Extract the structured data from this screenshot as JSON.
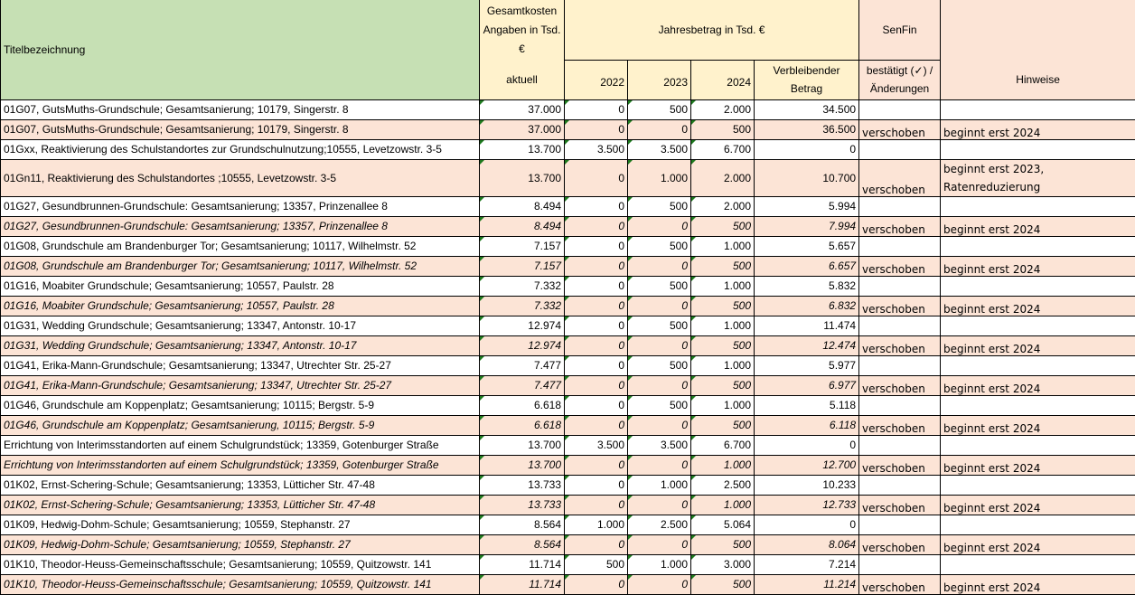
{
  "header": {
    "title_label": "Titelbezeichnung",
    "gesamtkosten_label": "Gesamtkosten Angaben in Tsd. €",
    "aktuell_label": "aktuell",
    "jahresbetrag_label": "Jahresbetrag in Tsd. €",
    "year_2022": "2022",
    "year_2023": "2023",
    "year_2024": "2024",
    "verbleibend_label": "Verbleibender Betrag",
    "senfin_label": "SenFin",
    "bestaetigt_label": "bestätigt (✓) / Änderungen",
    "hinweise_label": "Hinweise"
  },
  "rows": [
    {
      "title": "01G07, GutsMuths-Grundschule; Gesamtsanierung; 10179, Singerstr. 8",
      "aktuell": "37.000",
      "y2022": "0",
      "y2023": "500",
      "y2024": "2.000",
      "rest": "34.500",
      "senfin": "",
      "hinweis": ""
    },
    {
      "title": "01G07, GutsMuths-Grundschule; Gesamtsanierung; 10179, Singerstr. 8",
      "aktuell": "37.000",
      "y2022": "0",
      "y2023": "0",
      "y2024": "500",
      "rest": "36.500",
      "senfin": "verschoben",
      "hinweis": "beginnt erst 2024"
    },
    {
      "title": "01Gxx, Reaktivierung des Schulstandortes zur Grundschulnutzung;10555, Levetzowstr. 3-5",
      "aktuell": "13.700",
      "y2022": "3.500",
      "y2023": "3.500",
      "y2024": "6.700",
      "rest": "0",
      "senfin": "",
      "hinweis": ""
    },
    {
      "title": "01Gn11, Reaktivierung des Schulstandortes ;10555, Levetzowstr. 3-5",
      "aktuell": "13.700",
      "y2022": "0",
      "y2023": "1.000",
      "y2024": "2.000",
      "rest": "10.700",
      "senfin": "verschoben",
      "hinweis": "beginnt erst 2023, Ratenreduzierung"
    },
    {
      "title": "01G27, Gesundbrunnen-Grundschule: Gesamtsanierung; 13357, Prinzenallee 8",
      "aktuell": "8.494",
      "y2022": "0",
      "y2023": "500",
      "y2024": "2.000",
      "rest": "5.994",
      "senfin": "",
      "hinweis": ""
    },
    {
      "title": "01G27, Gesundbrunnen-Grundschule: Gesamtsanierung; 13357, Prinzenallee 8",
      "aktuell": "8.494",
      "y2022": "0",
      "y2023": "0",
      "y2024": "500",
      "rest": "7.994",
      "senfin": "verschoben",
      "hinweis": "beginnt erst 2024"
    },
    {
      "title": "01G08, Grundschule am Brandenburger Tor; Gesamtsanierung; 10117, Wilhelmstr. 52",
      "aktuell": "7.157",
      "y2022": "0",
      "y2023": "500",
      "y2024": "1.000",
      "rest": "5.657",
      "senfin": "",
      "hinweis": ""
    },
    {
      "title": "01G08, Grundschule am Brandenburger Tor; Gesamtsanierung; 10117, Wilhelmstr. 52",
      "aktuell": "7.157",
      "y2022": "0",
      "y2023": "0",
      "y2024": "500",
      "rest": "6.657",
      "senfin": "verschoben",
      "hinweis": "beginnt erst 2024"
    },
    {
      "title": "01G16, Moabiter Grundschule; Gesamtsanierung; 10557, Paulstr. 28",
      "aktuell": "7.332",
      "y2022": "0",
      "y2023": "500",
      "y2024": "1.000",
      "rest": "5.832",
      "senfin": "",
      "hinweis": ""
    },
    {
      "title": "01G16, Moabiter Grundschule; Gesamtsanierung; 10557, Paulstr. 28",
      "aktuell": "7.332",
      "y2022": "0",
      "y2023": "0",
      "y2024": "500",
      "rest": "6.832",
      "senfin": "verschoben",
      "hinweis": "beginnt erst 2024"
    },
    {
      "title": "01G31, Wedding Grundschule; Gesamtsanierung; 13347, Antonstr. 10-17",
      "aktuell": "12.974",
      "y2022": "0",
      "y2023": "500",
      "y2024": "1.000",
      "rest": "11.474",
      "senfin": "",
      "hinweis": ""
    },
    {
      "title": "01G31, Wedding Grundschule; Gesamtsanierung; 13347, Antonstr. 10-17",
      "aktuell": "12.974",
      "y2022": "0",
      "y2023": "0",
      "y2024": "500",
      "rest": "12.474",
      "senfin": "verschoben",
      "hinweis": "beginnt erst 2024"
    },
    {
      "title": "01G41, Erika-Mann-Grundschule; Gesamtsanierung; 13347, Utrechter Str. 25-27",
      "aktuell": "7.477",
      "y2022": "0",
      "y2023": "500",
      "y2024": "1.000",
      "rest": "5.977",
      "senfin": "",
      "hinweis": ""
    },
    {
      "title": "01G41, Erika-Mann-Grundschule; Gesamtsanierung; 13347, Utrechter Str. 25-27",
      "aktuell": "7.477",
      "y2022": "0",
      "y2023": "0",
      "y2024": "500",
      "rest": "6.977",
      "senfin": "verschoben",
      "hinweis": "beginnt erst 2024"
    },
    {
      "title": "01G46, Grundschule am Koppenplatz; Gesamtsanierung; 10115; Bergstr. 5-9",
      "aktuell": "6.618",
      "y2022": "0",
      "y2023": "500",
      "y2024": "1.000",
      "rest": "5.118",
      "senfin": "",
      "hinweis": ""
    },
    {
      "title": "01G46, Grundschule am Koppenplatz; Gesamtsanierung, 10115; Bergstr. 5-9",
      "aktuell": "6.618",
      "y2022": "0",
      "y2023": "0",
      "y2024": "500",
      "rest": "6.118",
      "senfin": "verschoben",
      "hinweis": "beginnt erst 2024"
    },
    {
      "title": "Errichtung von Interimsstandorten auf einem Schulgrundstück; 13359, Gotenburger Straße",
      "aktuell": "13.700",
      "y2022": "3.500",
      "y2023": "3.500",
      "y2024": "6.700",
      "rest": "0",
      "senfin": "",
      "hinweis": ""
    },
    {
      "title": "Errichtung von Interimsstandorten auf einem Schulgrundstück; 13359, Gotenburger Straße",
      "aktuell": "13.700",
      "y2022": "0",
      "y2023": "0",
      "y2024": "1.000",
      "rest": "12.700",
      "senfin": "verschoben",
      "hinweis": "beginnt erst 2024"
    },
    {
      "title": "01K02, Ernst-Schering-Schule; Gesamtsanierung; 13353, Lütticher Str. 47-48",
      "aktuell": "13.733",
      "y2022": "0",
      "y2023": "1.000",
      "y2024": "2.500",
      "rest": "10.233",
      "senfin": "",
      "hinweis": ""
    },
    {
      "title": "01K02, Ernst-Schering-Schule; Gesamtsanierung; 13353, Lütticher Str. 47-48",
      "aktuell": "13.733",
      "y2022": "0",
      "y2023": "0",
      "y2024": "1.000",
      "rest": "12.733",
      "senfin": "verschoben",
      "hinweis": "beginnt erst 2024"
    },
    {
      "title": "01K09, Hedwig-Dohm-Schule; Gesamtsanierung; 10559, Stephanstr. 27",
      "aktuell": "8.564",
      "y2022": "1.000",
      "y2023": "2.500",
      "y2024": "5.064",
      "rest": "0",
      "senfin": "",
      "hinweis": ""
    },
    {
      "title": "01K09, Hedwig-Dohm-Schule; Gesamtsanierung; 10559, Stephanstr. 27",
      "aktuell": "8.564",
      "y2022": "0",
      "y2023": "0",
      "y2024": "500",
      "rest": "8.064",
      "senfin": "verschoben",
      "hinweis": "beginnt erst 2024"
    },
    {
      "title": "01K10, Theodor-Heuss-Gemeinschaftsschule; Gesamtsanierung; 10559, Quitzowstr. 141",
      "aktuell": "11.714",
      "y2022": "500",
      "y2023": "1.000",
      "y2024": "3.000",
      "rest": "7.214",
      "senfin": "",
      "hinweis": ""
    },
    {
      "title": "01K10, Theodor-Heuss-Gemeinschaftsschule; Gesamtsanierung; 10559, Quitzowstr. 141",
      "aktuell": "11.714",
      "y2022": "0",
      "y2023": "0",
      "y2024": "500",
      "rest": "11.214",
      "senfin": "verschoben",
      "hinweis": "beginnt erst 2024"
    }
  ]
}
